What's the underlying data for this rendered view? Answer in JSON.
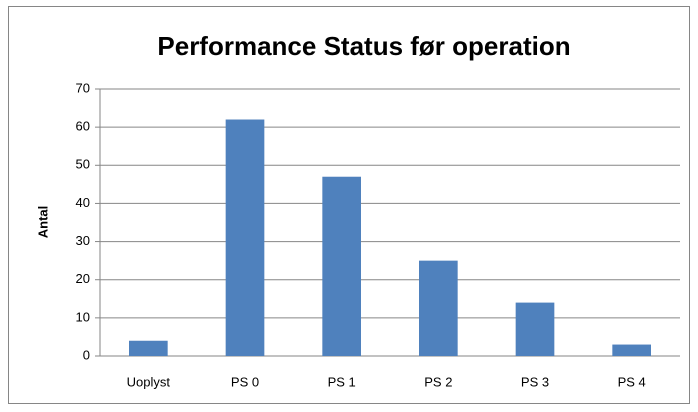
{
  "chart_data": {
    "type": "bar",
    "title": "Performance Status før operation",
    "y_label": "Antal",
    "categories": [
      "Uoplyst",
      "PS 0",
      "PS 1",
      "PS 2",
      "PS 3",
      "PS 4"
    ],
    "values": [
      4,
      62,
      47,
      25,
      14,
      3
    ],
    "color": "#4f81bd",
    "ylim": [
      0,
      70
    ],
    "yticks": [
      0,
      10,
      20,
      30,
      40,
      50,
      60,
      70
    ],
    "grid": true
  }
}
